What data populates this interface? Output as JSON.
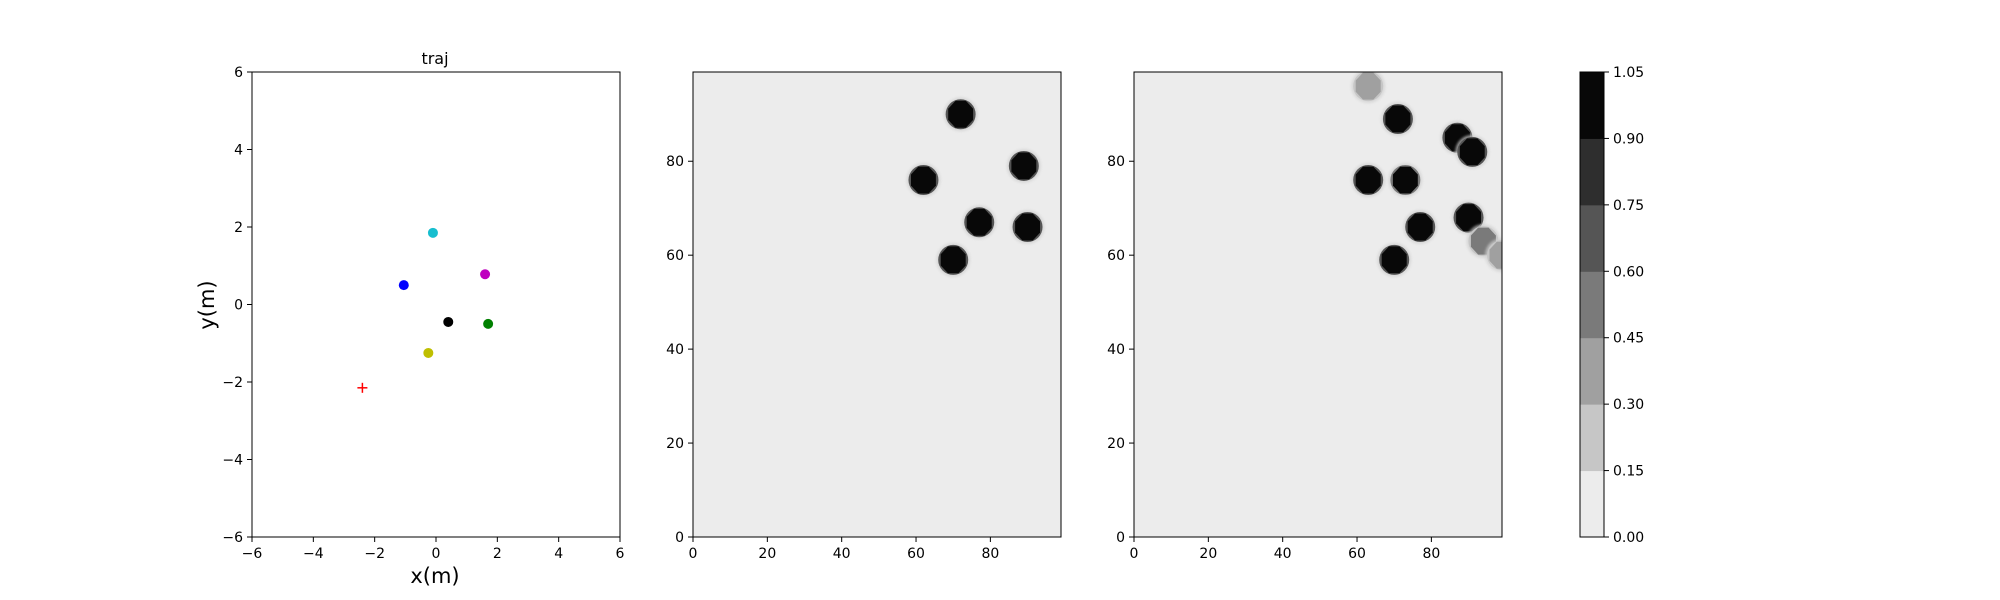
{
  "chart_data": [
    {
      "type": "scatter",
      "title": "traj",
      "xlabel": "x(m)",
      "ylabel": "y(m)",
      "xlim": [
        -6,
        6
      ],
      "ylim": [
        -6,
        6
      ],
      "xticks": [
        "−6",
        "−4",
        "−2",
        "0",
        "2",
        "4",
        "6"
      ],
      "yticks": [
        "−6",
        "−4",
        "−2",
        "0",
        "2",
        "4",
        "6"
      ],
      "grid": false,
      "points": [
        {
          "x": -0.1,
          "y": 1.85,
          "color": "#17becf",
          "marker": "circle"
        },
        {
          "x": -1.05,
          "y": 0.5,
          "color": "#0000ff",
          "marker": "circle"
        },
        {
          "x": 1.6,
          "y": 0.78,
          "color": "#bf00bf",
          "marker": "circle"
        },
        {
          "x": 0.4,
          "y": -0.45,
          "color": "#000000",
          "marker": "circle"
        },
        {
          "x": 1.7,
          "y": -0.5,
          "color": "#008000",
          "marker": "circle"
        },
        {
          "x": -0.25,
          "y": -1.25,
          "color": "#bfbf00",
          "marker": "circle"
        },
        {
          "x": -2.4,
          "y": -2.15,
          "color": "#ff0000",
          "marker": "plus"
        }
      ]
    },
    {
      "type": "heatmap",
      "title": "",
      "xlim": [
        0,
        99
      ],
      "ylim": [
        0,
        99
      ],
      "xticks": [
        "0",
        "20",
        "40",
        "60",
        "80"
      ],
      "yticks": [
        "0",
        "20",
        "40",
        "60",
        "80"
      ],
      "background_color": "#ececec",
      "blobs": [
        {
          "x": 72,
          "y": 90,
          "value": 1.0
        },
        {
          "x": 62,
          "y": 76,
          "value": 1.0
        },
        {
          "x": 89,
          "y": 79,
          "value": 1.0
        },
        {
          "x": 77,
          "y": 67,
          "value": 1.0
        },
        {
          "x": 90,
          "y": 66,
          "value": 1.0
        },
        {
          "x": 70,
          "y": 59,
          "value": 1.0
        }
      ]
    },
    {
      "type": "heatmap",
      "title": "",
      "xlim": [
        0,
        99
      ],
      "ylim": [
        0,
        99
      ],
      "xticks": [
        "0",
        "20",
        "40",
        "60",
        "80"
      ],
      "yticks": [
        "0",
        "20",
        "40",
        "60",
        "80"
      ],
      "background_color": "#ececec",
      "blobs": [
        {
          "x": 63,
          "y": 96,
          "value": 0.3
        },
        {
          "x": 71,
          "y": 89,
          "value": 1.0
        },
        {
          "x": 87,
          "y": 85,
          "value": 1.0
        },
        {
          "x": 91,
          "y": 82,
          "value": 1.0
        },
        {
          "x": 63,
          "y": 76,
          "value": 1.0
        },
        {
          "x": 73,
          "y": 76,
          "value": 0.9
        },
        {
          "x": 90,
          "y": 68,
          "value": 1.0
        },
        {
          "x": 77,
          "y": 66,
          "value": 1.0
        },
        {
          "x": 94,
          "y": 63,
          "value": 0.45
        },
        {
          "x": 70,
          "y": 59,
          "value": 1.0
        },
        {
          "x": 99,
          "y": 60,
          "value": 0.3
        }
      ]
    }
  ],
  "colorbar": {
    "ticks": [
      "0.00",
      "0.15",
      "0.30",
      "0.45",
      "0.60",
      "0.75",
      "0.90",
      "1.05"
    ],
    "levels": [
      0.0,
      0.15,
      0.3,
      0.45,
      0.6,
      0.75,
      0.9,
      1.05
    ],
    "colors": [
      "#ececec",
      "#c6c6c6",
      "#a0a0a0",
      "#7a7a7a",
      "#555555",
      "#2e2e2e",
      "#080808"
    ]
  }
}
